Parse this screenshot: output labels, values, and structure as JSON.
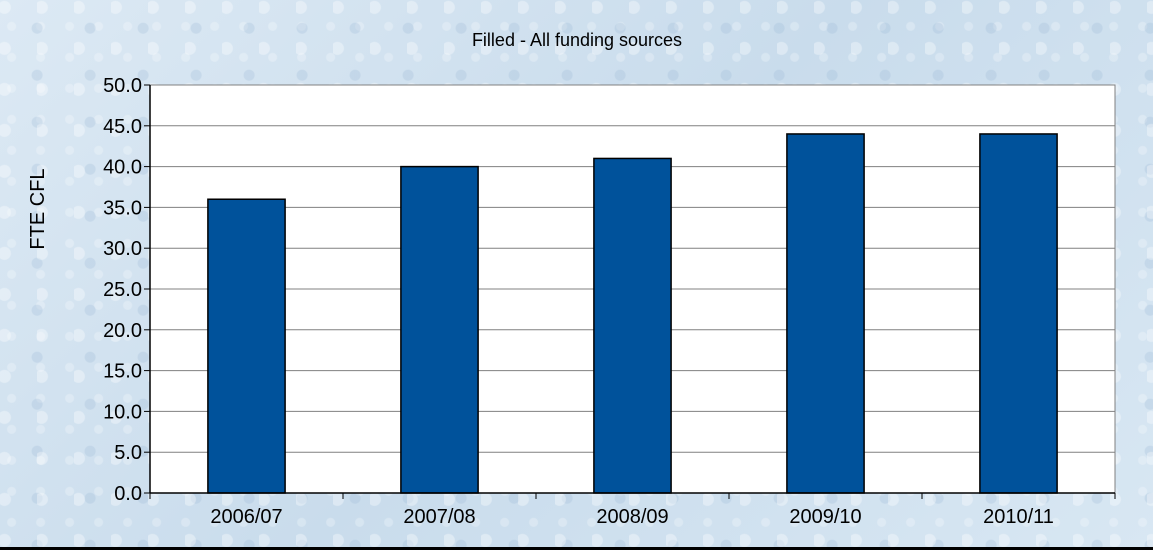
{
  "chart_data": {
    "type": "bar",
    "title": "Filled - All funding sources",
    "xlabel": "",
    "ylabel": "FTE CFL",
    "categories": [
      "2006/07",
      "2007/08",
      "2008/09",
      "2009/10",
      "2010/11"
    ],
    "values": [
      36,
      40,
      41,
      44,
      44
    ],
    "ylim": [
      0,
      50
    ],
    "yticks": [
      "0.0",
      "5.0",
      "10.0",
      "15.0",
      "20.0",
      "25.0",
      "30.0",
      "35.0",
      "40.0",
      "45.0",
      "50.0"
    ],
    "grid": true,
    "legend": "none"
  },
  "colors": {
    "bar_fill": "#00529b",
    "bar_stroke": "#000000",
    "plot_background": "#ffffff",
    "gridline": "#808080"
  }
}
